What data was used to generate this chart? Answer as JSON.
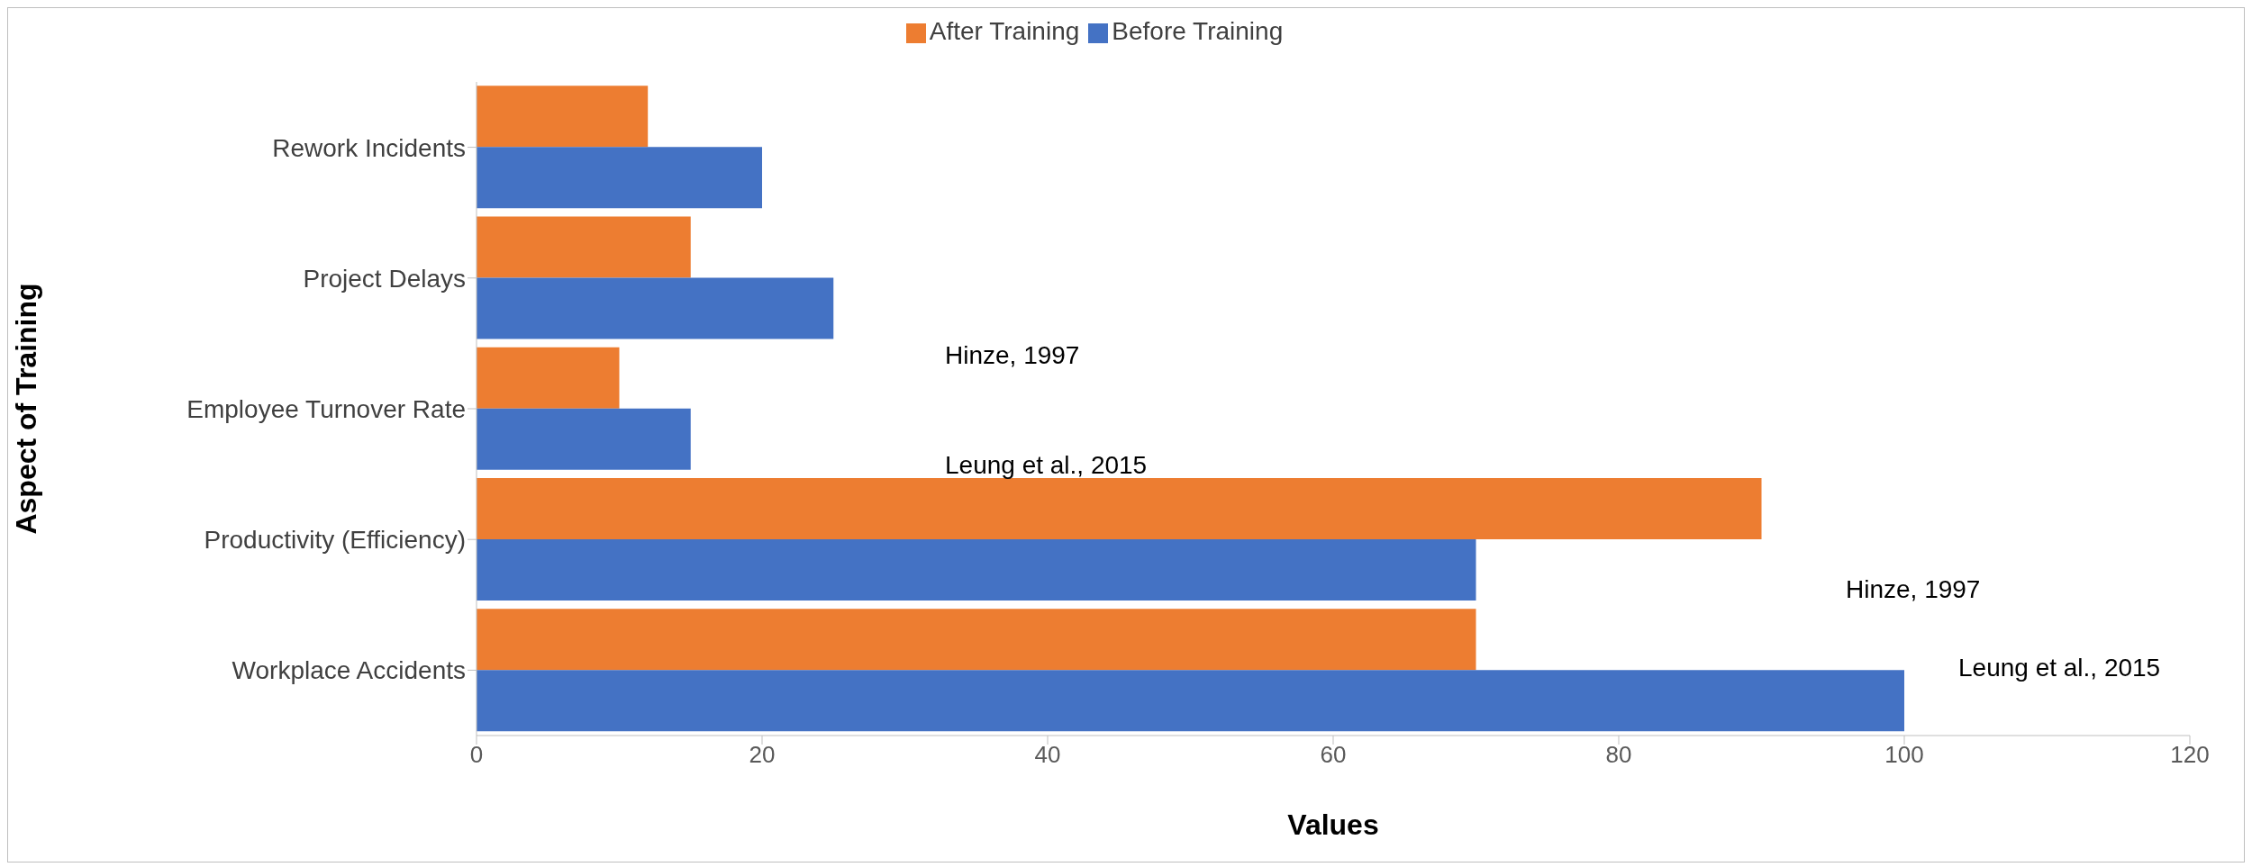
{
  "chart_data": {
    "type": "bar",
    "orientation": "horizontal",
    "xlabel": "Values",
    "ylabel": "Aspect of Training",
    "categories": [
      "Rework Incidents",
      "Project Delays",
      "Employee Turnover Rate",
      "Productivity (Efficiency)",
      "Workplace Accidents"
    ],
    "series": [
      {
        "name": "After Training",
        "color": "#ed7d31",
        "values": [
          12,
          15,
          10,
          90,
          70
        ]
      },
      {
        "name": "Before Training",
        "color": "#4472c4",
        "values": [
          20,
          25,
          15,
          70,
          100
        ]
      }
    ],
    "xlim": [
      0,
      120
    ],
    "xticks": [
      0,
      20,
      40,
      60,
      80,
      100,
      120
    ],
    "grid": false,
    "legend": "top",
    "annotations": [
      "Hinze, 1997",
      "Leung et al., 2015",
      "Hinze, 1997",
      "Leung et al., 2015"
    ]
  }
}
